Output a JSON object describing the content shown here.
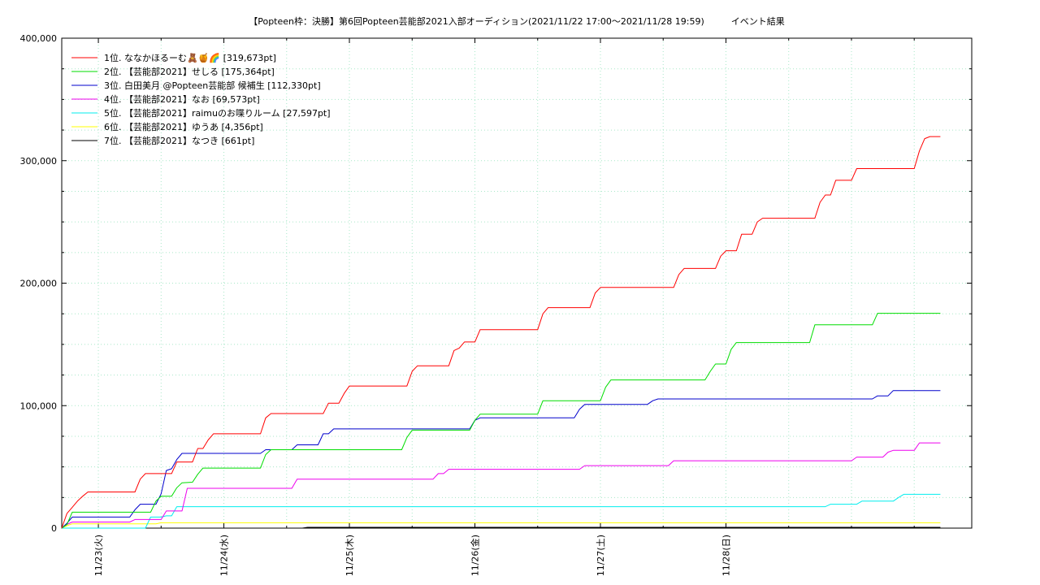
{
  "chart_data": {
    "type": "line",
    "title": "【Popteen枠：決勝】第6回Popteen芸能部2021入部オーディション(2021/11/22 17:00〜2021/11/28 19:59)　　　イベント結果",
    "xlabel": "",
    "ylabel": "",
    "x_unit": "hours since 2021/11/22 17:00",
    "xlim": [
      0,
      174
    ],
    "ylim": [
      0,
      400000
    ],
    "y_ticks": [
      {
        "value": 0,
        "label": "0"
      },
      {
        "value": 100000,
        "label": "100,000"
      },
      {
        "value": 200000,
        "label": "200,000"
      },
      {
        "value": 300000,
        "label": "300,000"
      },
      {
        "value": 400000,
        "label": "400,000"
      }
    ],
    "x_ticks": [
      {
        "value": 7,
        "label": "11/23(火)"
      },
      {
        "value": 31,
        "label": "11/24(水)"
      },
      {
        "value": 55,
        "label": "11/25(木)"
      },
      {
        "value": 79,
        "label": "11/26(金)"
      },
      {
        "value": 103,
        "label": "11/27(土)"
      },
      {
        "value": 127,
        "label": "11/28(日)"
      }
    ],
    "grid": true,
    "legend_position": "top-left",
    "series": [
      {
        "name": "1位. ななかほるーむ🧸🍯🌈 [319,673pt]",
        "color": "#ff0000",
        "points": [
          [
            0,
            0
          ],
          [
            1,
            12000
          ],
          [
            2,
            17000
          ],
          [
            3,
            22000
          ],
          [
            4,
            26000
          ],
          [
            5,
            29500
          ],
          [
            14,
            29500
          ],
          [
            15,
            40000
          ],
          [
            16,
            44500
          ],
          [
            21,
            44500
          ],
          [
            22,
            54000
          ],
          [
            25,
            54000
          ],
          [
            26,
            65000
          ],
          [
            27,
            65000
          ],
          [
            28,
            72000
          ],
          [
            29,
            77000
          ],
          [
            38,
            77000
          ],
          [
            39,
            90000
          ],
          [
            40,
            93500
          ],
          [
            50,
            93500
          ],
          [
            51,
            102000
          ],
          [
            53,
            102000
          ],
          [
            54,
            110000
          ],
          [
            55,
            116000
          ],
          [
            66,
            116000
          ],
          [
            67,
            128000
          ],
          [
            68,
            132500
          ],
          [
            74,
            132500
          ],
          [
            75,
            145000
          ],
          [
            76,
            147000
          ],
          [
            77,
            152000
          ],
          [
            79,
            152000
          ],
          [
            80,
            162000
          ],
          [
            91,
            162000
          ],
          [
            92,
            175000
          ],
          [
            93,
            180000
          ],
          [
            101,
            180000
          ],
          [
            102,
            192000
          ],
          [
            103,
            196500
          ],
          [
            117,
            196500
          ],
          [
            118,
            207000
          ],
          [
            119,
            212000
          ],
          [
            125,
            212000
          ],
          [
            126,
            222000
          ],
          [
            127,
            226500
          ],
          [
            129,
            226500
          ],
          [
            130,
            240000
          ],
          [
            132,
            240000
          ],
          [
            133,
            250000
          ],
          [
            134,
            253000
          ],
          [
            144,
            253000
          ],
          [
            145,
            266000
          ],
          [
            146,
            272000
          ],
          [
            147,
            272000
          ],
          [
            148,
            284000
          ],
          [
            151,
            284000
          ],
          [
            152,
            293500
          ],
          [
            163,
            293500
          ],
          [
            164,
            308000
          ],
          [
            165,
            318000
          ],
          [
            166,
            319673
          ],
          [
            168,
            319673
          ]
        ]
      },
      {
        "name": "2位. 【芸能部2021】せしる [175,364pt]",
        "color": "#00dd00",
        "points": [
          [
            0,
            0
          ],
          [
            1,
            3000
          ],
          [
            2,
            13000
          ],
          [
            17,
            13000
          ],
          [
            18,
            22000
          ],
          [
            19,
            26000
          ],
          [
            21,
            26000
          ],
          [
            22,
            33000
          ],
          [
            23,
            37000
          ],
          [
            25,
            37500
          ],
          [
            26,
            44000
          ],
          [
            27,
            49000
          ],
          [
            38,
            49000
          ],
          [
            39,
            60000
          ],
          [
            40,
            64000
          ],
          [
            65,
            64000
          ],
          [
            66,
            74000
          ],
          [
            67,
            80000
          ],
          [
            78,
            80000
          ],
          [
            79,
            88000
          ],
          [
            80,
            93000
          ],
          [
            91,
            93000
          ],
          [
            92,
            104000
          ],
          [
            103,
            104000
          ],
          [
            104,
            115000
          ],
          [
            105,
            121000
          ],
          [
            123,
            121000
          ],
          [
            124,
            128000
          ],
          [
            125,
            134000
          ],
          [
            127,
            134000
          ],
          [
            128,
            146000
          ],
          [
            129,
            151500
          ],
          [
            143,
            151500
          ],
          [
            144,
            166000
          ],
          [
            155,
            166000
          ],
          [
            156,
            175364
          ],
          [
            168,
            175364
          ]
        ]
      },
      {
        "name": "3位. 白田美月 @Popteen芸能部 候補生 [112,330pt]",
        "color": "#0000cc",
        "points": [
          [
            0,
            0
          ],
          [
            1,
            4000
          ],
          [
            2,
            9000
          ],
          [
            13,
            9000
          ],
          [
            14,
            15000
          ],
          [
            15,
            19500
          ],
          [
            18,
            19500
          ],
          [
            19,
            28000
          ],
          [
            20,
            47000
          ],
          [
            21,
            48500
          ],
          [
            22,
            56000
          ],
          [
            23,
            61000
          ],
          [
            38,
            61000
          ],
          [
            39,
            64000
          ],
          [
            44,
            64000
          ],
          [
            45,
            68000
          ],
          [
            49,
            68000
          ],
          [
            50,
            77000
          ],
          [
            51,
            77000
          ],
          [
            52,
            81000
          ],
          [
            78,
            81000
          ],
          [
            79,
            88000
          ],
          [
            80,
            90000
          ],
          [
            98,
            90000
          ],
          [
            99,
            97000
          ],
          [
            100,
            101000
          ],
          [
            112,
            101000
          ],
          [
            113,
            104000
          ],
          [
            114,
            105500
          ],
          [
            155,
            105500
          ],
          [
            156,
            108000
          ],
          [
            158,
            108000
          ],
          [
            159,
            112330
          ],
          [
            168,
            112330
          ]
        ]
      },
      {
        "name": "4位. 【芸能部2021】なお [69,573pt]",
        "color": "#ee00ee",
        "points": [
          [
            0,
            0
          ],
          [
            1,
            3000
          ],
          [
            2,
            5000
          ],
          [
            13,
            5000
          ],
          [
            14,
            7000
          ],
          [
            19,
            7000
          ],
          [
            20,
            14000
          ],
          [
            23,
            14000
          ],
          [
            24,
            32500
          ],
          [
            44,
            32500
          ],
          [
            45,
            40000
          ],
          [
            71,
            40000
          ],
          [
            72,
            44500
          ],
          [
            73,
            44500
          ],
          [
            74,
            48000
          ],
          [
            99,
            48000
          ],
          [
            100,
            51000
          ],
          [
            116,
            51000
          ],
          [
            117,
            55000
          ],
          [
            151,
            55000
          ],
          [
            152,
            58000
          ],
          [
            157,
            58000
          ],
          [
            158,
            62000
          ],
          [
            159,
            63500
          ],
          [
            163,
            63500
          ],
          [
            164,
            69573
          ],
          [
            168,
            69573
          ]
        ]
      },
      {
        "name": "5位. 【芸能部2021】raimuのお喋りルーム [27,597pt]",
        "color": "#00eeee",
        "points": [
          [
            0,
            0
          ],
          [
            16,
            0
          ],
          [
            17,
            9000
          ],
          [
            19,
            9000
          ],
          [
            20,
            10000
          ],
          [
            21,
            10000
          ],
          [
            22,
            17500
          ],
          [
            146,
            17500
          ],
          [
            147,
            19500
          ],
          [
            152,
            19500
          ],
          [
            153,
            22000
          ],
          [
            159,
            22000
          ],
          [
            160,
            25000
          ],
          [
            161,
            27597
          ],
          [
            168,
            27597
          ]
        ]
      },
      {
        "name": "6位. 【芸能部2021】ゆうあ [4,356pt]",
        "color": "#ffff00",
        "points": [
          [
            0,
            0
          ],
          [
            1,
            2000
          ],
          [
            2,
            3500
          ],
          [
            18,
            3500
          ],
          [
            19,
            4356
          ],
          [
            168,
            4356
          ]
        ]
      },
      {
        "name": "7位. 【芸能部2021】なつき [661pt]",
        "color": "#000000",
        "points": [
          [
            0,
            0
          ],
          [
            46,
            0
          ],
          [
            47,
            661
          ],
          [
            168,
            661
          ]
        ]
      }
    ]
  }
}
